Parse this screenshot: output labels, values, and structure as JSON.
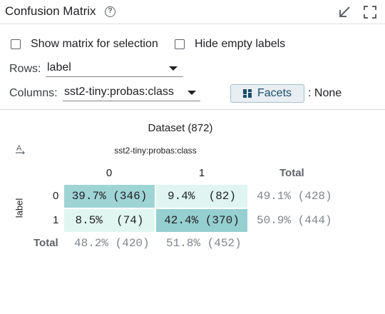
{
  "header": {
    "title": "Confusion Matrix",
    "help_icon": "help-circle-icon",
    "minimize_icon": "minimize-arrow-icon",
    "fullscreen_icon": "fullscreen-icon"
  },
  "controls": {
    "show_matrix_label": "Show matrix for selection",
    "show_matrix_checked": false,
    "hide_empty_label": "Hide empty labels",
    "hide_empty_checked": false,
    "rows_label": "Rows:",
    "rows_value": "label",
    "columns_label": "Columns:",
    "columns_value": "sst2-tiny:probas:class",
    "facets_label": "Facets",
    "facets_value": ": None"
  },
  "matrix": {
    "dataset_title": "Dataset (872)",
    "column_field": "sst2-tiny:probas:class",
    "row_field": "label",
    "column_headers": [
      "0",
      "1"
    ],
    "total_label": "Total",
    "rows": [
      {
        "label": "0",
        "cells": [
          {
            "text": "39.7% (346)",
            "color": "#9fd4d5"
          },
          {
            "text": "9.4%  (82)",
            "color": "#e0f5f2"
          }
        ],
        "total": "49.1% (428)"
      },
      {
        "label": "1",
        "cells": [
          {
            "text": "8.5%  (74)",
            "color": "#e1f6f1"
          },
          {
            "text": "42.4% (370)",
            "color": "#96cfcf"
          }
        ],
        "total": "50.9% (444)"
      }
    ],
    "column_totals": [
      "48.2% (420)",
      "51.8% (452)"
    ]
  },
  "colors": {
    "facets_button_bg": "#e8eef2",
    "facets_text": "#1a4e6e",
    "divider": "#dadce0"
  }
}
